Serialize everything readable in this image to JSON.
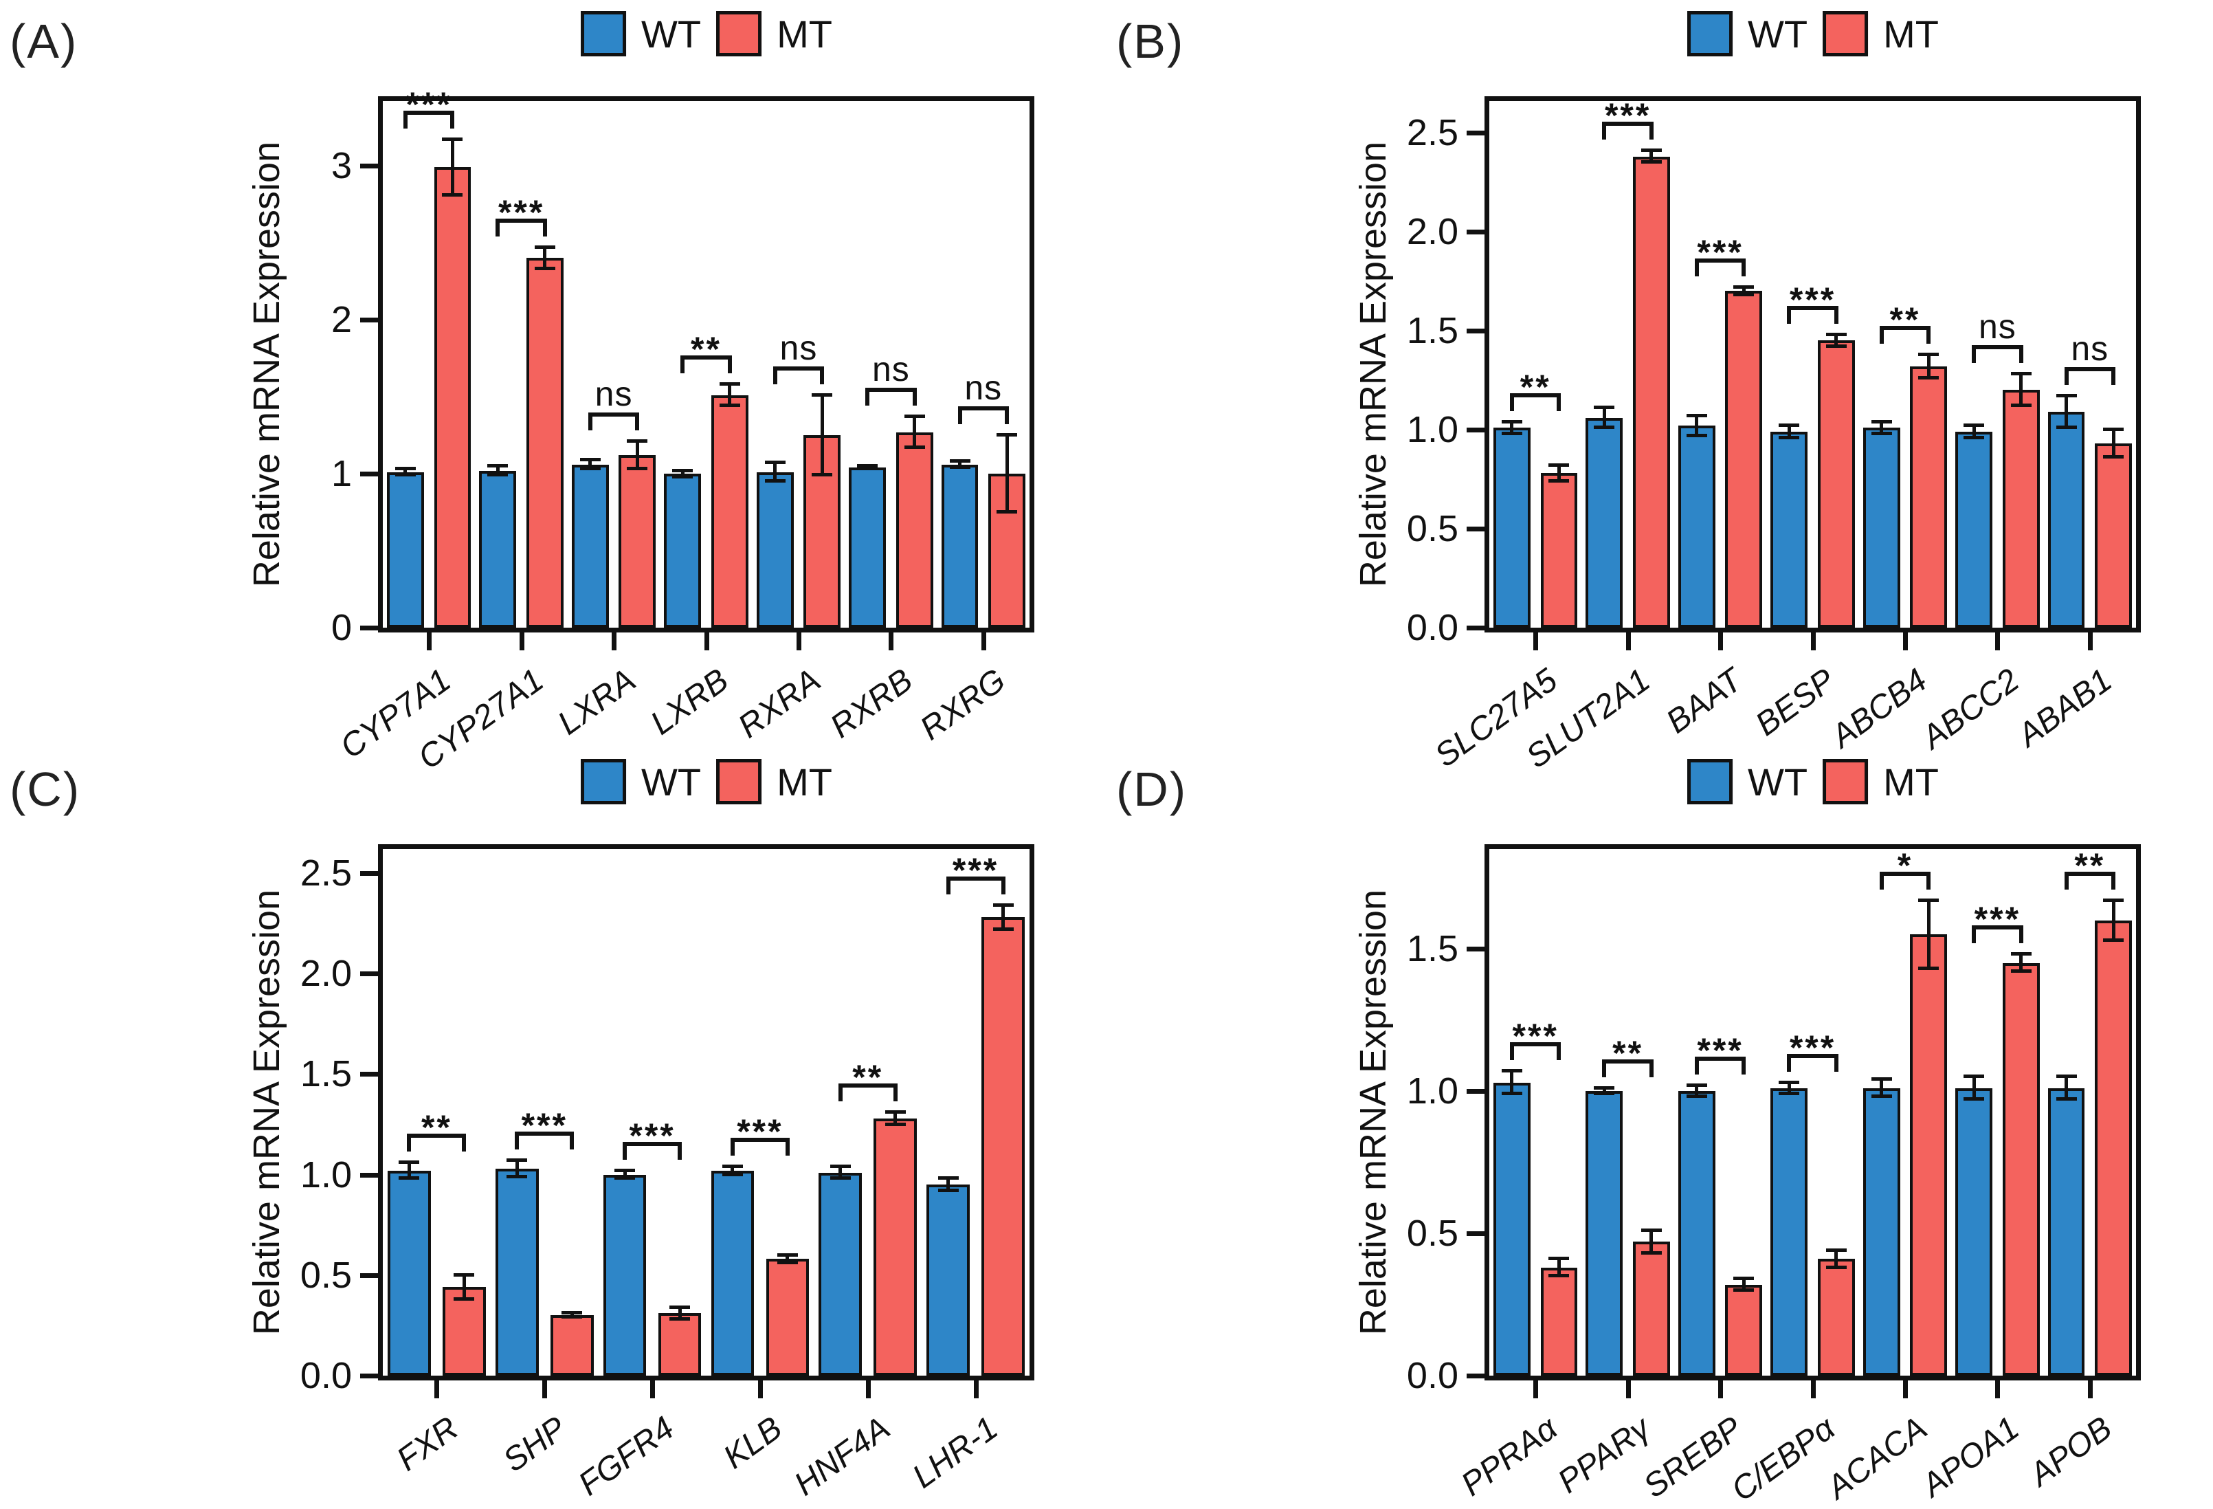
{
  "figure": {
    "legend": {
      "wt": "WT",
      "mt": "MT"
    },
    "colors": {
      "wt": "#2E86C8",
      "mt": "#F4635E",
      "axis": "#111111"
    },
    "ylabel": "Relative mRNA Expression"
  },
  "chart_data": [
    {
      "panel": "(A)",
      "type": "bar",
      "categories": [
        "CYP7A1",
        "CYP27A1",
        "LXRA",
        "LXRB",
        "RXRA",
        "RXRB",
        "RXRG"
      ],
      "series": [
        {
          "name": "WT",
          "values": [
            1.01,
            1.02,
            1.06,
            1.0,
            1.01,
            1.04,
            1.06
          ],
          "errors": [
            0.02,
            0.03,
            0.03,
            0.02,
            0.06,
            0.01,
            0.02
          ]
        },
        {
          "name": "MT",
          "values": [
            2.99,
            2.4,
            1.12,
            1.51,
            1.25,
            1.27,
            1.0
          ],
          "errors": [
            0.18,
            0.07,
            0.09,
            0.07,
            0.26,
            0.1,
            0.25
          ]
        }
      ],
      "significance": [
        "***",
        "***",
        "ns",
        "**",
        "ns",
        "ns",
        "ns"
      ],
      "title": "",
      "xlabel": "",
      "ylabel": "Relative mRNA Expression",
      "yticks": [
        0,
        1,
        2,
        3
      ],
      "ytick_labels": [
        "0",
        "1",
        "2",
        "3"
      ],
      "ylim": [
        0,
        3.42
      ],
      "grid": "off",
      "legend_position": "top"
    },
    {
      "panel": "(B)",
      "type": "bar",
      "categories": [
        "SLC27A5",
        "SLUT2A1",
        "BAAT",
        "BESP",
        "ABCB4",
        "ABCC2",
        "ABAB1"
      ],
      "series": [
        {
          "name": "WT",
          "values": [
            1.01,
            1.06,
            1.02,
            0.99,
            1.01,
            0.99,
            1.09
          ],
          "errors": [
            0.03,
            0.05,
            0.05,
            0.03,
            0.03,
            0.03,
            0.08
          ]
        },
        {
          "name": "MT",
          "values": [
            0.78,
            2.38,
            1.7,
            1.45,
            1.32,
            1.2,
            0.93
          ],
          "errors": [
            0.04,
            0.03,
            0.02,
            0.03,
            0.06,
            0.08,
            0.07
          ]
        }
      ],
      "significance": [
        "**",
        "***",
        "***",
        "***",
        "**",
        "ns",
        "ns"
      ],
      "title": "",
      "xlabel": "",
      "ylabel": "Relative mRNA Expression",
      "yticks": [
        0,
        0.5,
        1,
        1.5,
        2,
        2.5
      ],
      "ytick_labels": [
        "0.0",
        "0.5",
        "1.0",
        "1.5",
        "2.0",
        "2.5"
      ],
      "ylim": [
        0,
        2.66
      ],
      "grid": "off",
      "legend_position": "top"
    },
    {
      "panel": "(C)",
      "type": "bar",
      "categories": [
        "FXR",
        "SHP",
        "FGFR4",
        "KLB",
        "HNF4A",
        "LHR-1"
      ],
      "series": [
        {
          "name": "WT",
          "values": [
            1.02,
            1.03,
            1.0,
            1.02,
            1.01,
            0.95
          ],
          "errors": [
            0.04,
            0.04,
            0.02,
            0.02,
            0.03,
            0.03
          ]
        },
        {
          "name": "MT",
          "values": [
            0.44,
            0.3,
            0.31,
            0.58,
            1.28,
            2.28
          ],
          "errors": [
            0.06,
            0.01,
            0.03,
            0.02,
            0.03,
            0.06
          ]
        }
      ],
      "significance": [
        "**",
        "***",
        "***",
        "***",
        "**",
        "***"
      ],
      "title": "",
      "xlabel": "",
      "ylabel": "Relative mRNA Expression",
      "yticks": [
        0,
        0.5,
        1,
        1.5,
        2,
        2.5
      ],
      "ytick_labels": [
        "0.0",
        "0.5",
        "1.0",
        "1.5",
        "2.0",
        "2.5"
      ],
      "ylim": [
        0,
        2.62
      ],
      "grid": "off",
      "legend_position": "top"
    },
    {
      "panel": "(D)",
      "type": "bar",
      "categories": [
        "PPRAα",
        "PPARγ",
        "SREBP",
        "C/EBPα",
        "ACACA",
        "APOA1",
        "APOB"
      ],
      "series": [
        {
          "name": "WT",
          "values": [
            1.03,
            1.0,
            1.0,
            1.01,
            1.01,
            1.01,
            1.01
          ],
          "errors": [
            0.04,
            0.01,
            0.02,
            0.02,
            0.03,
            0.04,
            0.04
          ]
        },
        {
          "name": "MT",
          "values": [
            0.38,
            0.47,
            0.32,
            0.41,
            1.55,
            1.45,
            1.6
          ],
          "errors": [
            0.03,
            0.04,
            0.02,
            0.03,
            0.12,
            0.03,
            0.07
          ]
        }
      ],
      "significance": [
        "***",
        "**",
        "***",
        "***",
        "*",
        "***",
        "**"
      ],
      "title": "",
      "xlabel": "",
      "ylabel": "Relative mRNA Expression",
      "yticks": [
        0,
        0.5,
        1,
        1.5
      ],
      "ytick_labels": [
        "0.0",
        "0.5",
        "1.0",
        "1.5"
      ],
      "ylim": [
        0,
        1.85
      ],
      "grid": "off",
      "legend_position": "top"
    }
  ]
}
